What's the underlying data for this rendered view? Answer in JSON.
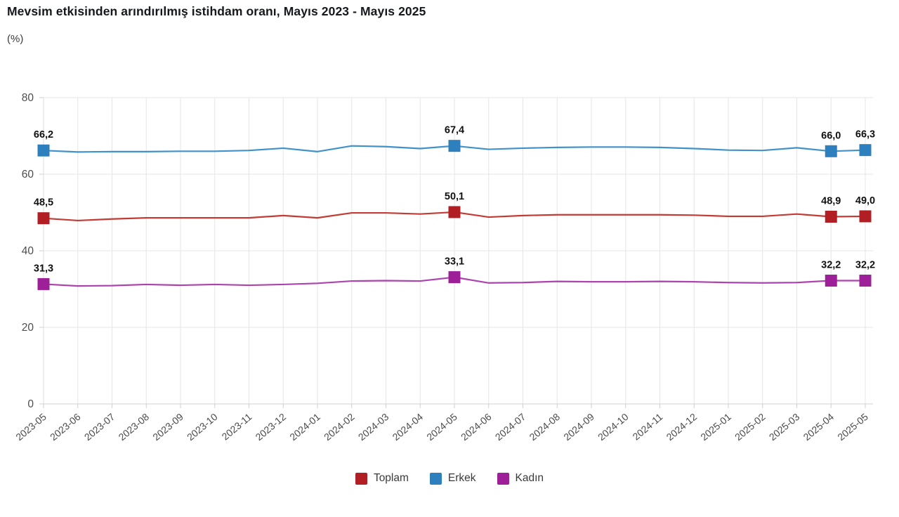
{
  "title": "Mevsim etkisinden arındırılmış istihdam oranı, Mayıs 2023 - Mayıs 2025",
  "subtitle": "(%)",
  "legend": {
    "items": [
      {
        "label": "Toplam",
        "color": "#b11f24"
      },
      {
        "label": "Erkek",
        "color": "#2e7fbe"
      },
      {
        "label": "Kadın",
        "color": "#9d2098"
      }
    ]
  },
  "chart_data": {
    "type": "line",
    "title": "Mevsim etkisinden arındırılmış istihdam oranı, Mayıs 2023 - Mayıs 2025",
    "ylabel": "(%)",
    "ylim": [
      0,
      80
    ],
    "yticks": [
      0,
      20,
      40,
      60,
      80
    ],
    "grid": true,
    "legend_position": "bottom",
    "marker_style": "square, only on labeled points",
    "x": [
      "2023-05",
      "2023-06",
      "2023-07",
      "2023-08",
      "2023-09",
      "2023-10",
      "2023-11",
      "2023-12",
      "2024-01",
      "2024-02",
      "2024-03",
      "2024-04",
      "2024-05",
      "2024-06",
      "2024-07",
      "2024-08",
      "2024-09",
      "2024-10",
      "2024-11",
      "2024-12",
      "2025-01",
      "2025-02",
      "2025-03",
      "2025-04",
      "2025-05"
    ],
    "series": [
      {
        "name": "Toplam",
        "marker_color": "#b11f24",
        "line_color": "#c23b34",
        "values": [
          48.5,
          47.9,
          48.3,
          48.6,
          48.6,
          48.6,
          48.6,
          49.2,
          48.6,
          49.9,
          49.9,
          49.6,
          50.1,
          48.8,
          49.2,
          49.4,
          49.4,
          49.4,
          49.4,
          49.3,
          49.0,
          49.0,
          49.6,
          48.9,
          49.0
        ],
        "labeled_points": {
          "0": "48,5",
          "12": "50,1",
          "23": "48,9",
          "24": "49,0"
        }
      },
      {
        "name": "Erkek",
        "marker_color": "#2e7fbe",
        "line_color": "#4191ca",
        "values": [
          66.2,
          65.8,
          65.9,
          65.9,
          66.0,
          66.0,
          66.2,
          66.8,
          65.9,
          67.4,
          67.2,
          66.7,
          67.4,
          66.5,
          66.8,
          67.0,
          67.1,
          67.1,
          67.0,
          66.7,
          66.3,
          66.2,
          66.9,
          66.0,
          66.3
        ],
        "labeled_points": {
          "0": "66,2",
          "12": "67,4",
          "23": "66,0",
          "24": "66,3"
        }
      },
      {
        "name": "Kadın",
        "marker_color": "#9d2098",
        "line_color": "#ad44ad",
        "values": [
          31.3,
          30.8,
          30.9,
          31.2,
          31.0,
          31.2,
          31.0,
          31.2,
          31.5,
          32.1,
          32.2,
          32.1,
          33.1,
          31.6,
          31.7,
          32.0,
          31.9,
          31.9,
          32.0,
          31.9,
          31.7,
          31.6,
          31.7,
          32.2,
          32.2
        ],
        "labeled_points": {
          "0": "31,3",
          "12": "33,1",
          "23": "32,2",
          "24": "32,2"
        }
      }
    ]
  }
}
